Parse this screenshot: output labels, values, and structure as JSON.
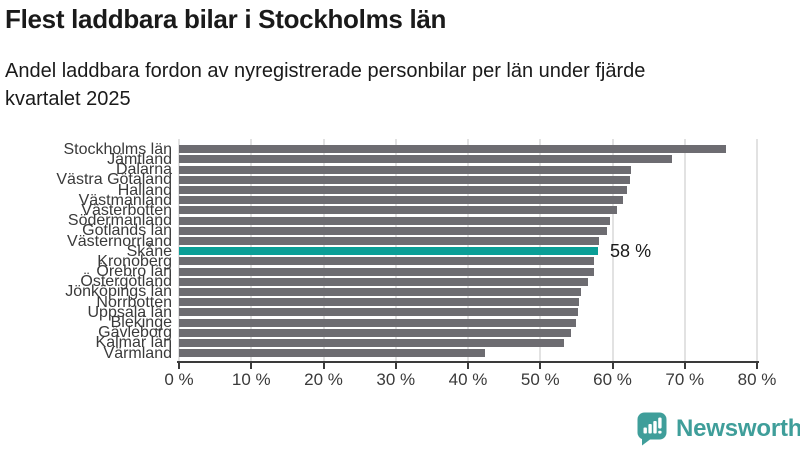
{
  "header": {
    "title": "Flest laddbara bilar i Stockholms län",
    "subtitle_lines": [
      "Andel laddbara fordon av nyregistrerade personbilar per län under fjärde",
      "kvartalet 2025"
    ]
  },
  "chart_data": {
    "type": "bar",
    "orientation": "horizontal",
    "title": "Flest laddbara bilar i Stockholms län",
    "subtitle": "Andel laddbara fordon av nyregistrerade personbilar per län under fjärde kvartalet 2025",
    "unit": "%",
    "categories": [
      "Stockholms län",
      "Jämtland",
      "Dalarna",
      "Västra Götaland",
      "Halland",
      "Västmanland",
      "Västerbotten",
      "Södermanland",
      "Gotlands län",
      "Västernorrland",
      "Skåne",
      "Kronoberg",
      "Örebro län",
      "Östergötland",
      "Jönköpings län",
      "Norrbotten",
      "Uppsala län",
      "Blekinge",
      "Gävleborg",
      "Kalmar län",
      "Värmland"
    ],
    "values": [
      75.7,
      68.2,
      62.5,
      62.4,
      62.0,
      61.4,
      60.6,
      59.7,
      59.3,
      58.1,
      58.0,
      57.5,
      57.4,
      56.6,
      55.6,
      55.4,
      55.2,
      55.0,
      54.2,
      53.3,
      42.4
    ],
    "xlim": [
      0,
      80
    ],
    "x_ticks": [
      "0 %",
      "10 %",
      "20 %",
      "30 %",
      "40 %",
      "50 %",
      "60 %",
      "70 %",
      "80 %"
    ],
    "grid": true,
    "legend": "none",
    "highlight": {
      "category": "Skåne",
      "index": 10,
      "label": "58 %"
    },
    "colors": {
      "bar": "#6d6c71",
      "highlight": "#0a9e96",
      "gridline": "#e2e2e2",
      "axis": "#3a3a3a",
      "label_text": "#3a3a3a"
    }
  },
  "footer": {
    "brand": "Newsworthy",
    "brand_color": "#3f9e9a"
  }
}
